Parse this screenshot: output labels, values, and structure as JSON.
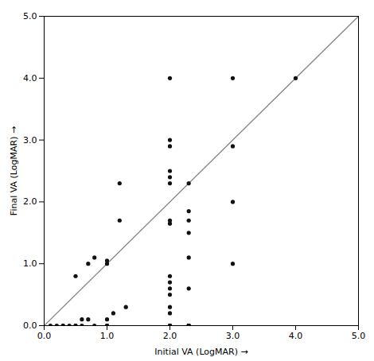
{
  "chart_data": {
    "type": "scatter",
    "xlabel": "Initial VA (LogMAR)",
    "ylabel": "Final VA (LogMAR)",
    "xlim": [
      0,
      5
    ],
    "ylim": [
      0,
      5
    ],
    "xticks": [
      0,
      1,
      2,
      3,
      4,
      5
    ],
    "yticks": [
      0,
      1,
      2,
      3,
      4,
      5
    ],
    "series": [
      {
        "type": "line",
        "color": "#888888",
        "x": [
          0,
          5
        ],
        "values": [
          0,
          5
        ]
      },
      {
        "type": "scatter",
        "color": "#111111",
        "x": [
          0.1,
          0.2,
          0.3,
          0.3,
          0.4,
          0.5,
          0.5,
          0.5,
          0.6,
          0.6,
          0.7,
          0.7,
          0.8,
          0.8,
          1.0,
          1.0,
          1.0,
          1.0,
          1.0,
          1.0,
          1.1,
          1.2,
          1.2,
          1.3,
          2.0,
          2.0,
          2.0,
          2.0,
          2.0,
          2.0,
          2.0,
          2.0,
          2.0,
          2.0,
          2.0,
          2.0,
          2.0,
          2.0,
          2.0,
          2.0,
          2.0,
          2.0,
          2.3,
          2.3,
          2.3,
          2.3,
          2.3,
          2.3,
          2.3,
          2.3,
          2.3,
          2.3,
          2.3,
          2.3,
          2.3,
          3.0,
          3.0,
          3.0,
          3.0,
          4.0
        ],
        "values": [
          0.0,
          0.0,
          0.0,
          0.0,
          0.0,
          0.0,
          0.0,
          0.8,
          0.0,
          0.1,
          0.1,
          1.0,
          0.0,
          1.1,
          0.0,
          0.0,
          0.0,
          0.1,
          1.0,
          1.05,
          0.2,
          1.7,
          2.3,
          0.3,
          0.0,
          0.0,
          0.0,
          0.0,
          0.2,
          0.3,
          0.5,
          0.6,
          0.7,
          0.8,
          1.65,
          1.7,
          2.3,
          2.4,
          2.5,
          2.9,
          3.0,
          4.0,
          0.0,
          0.0,
          0.0,
          0.0,
          0.0,
          0.0,
          0.0,
          0.6,
          1.1,
          1.5,
          1.7,
          1.85,
          2.3,
          1.0,
          2.0,
          2.9,
          4.0,
          4.0
        ]
      }
    ]
  }
}
